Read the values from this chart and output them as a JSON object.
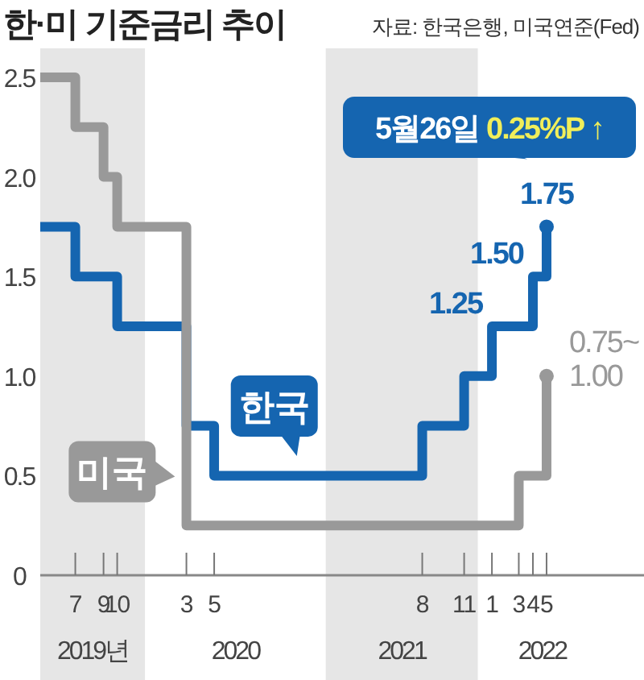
{
  "chart_data": {
    "type": "step",
    "title": "한·미 기준금리 추이",
    "annotations": [
      "자료: 한국은행, 미국연준(Fed)",
      {
        "text": "5월26일 0.25%P ↑",
        "x": "2022-05",
        "y": 1.75
      },
      "2020",
      "2022"
    ],
    "series": [
      {
        "name": "한국",
        "color": "#1565b0",
        "x": [
          "2019-04-15",
          "2019-07",
          "2019-10",
          "2020-03",
          "2020-05",
          "2021-08",
          "2021-11",
          "2022-01",
          "2022-04",
          "2022-05"
        ],
        "values": [
          1.75,
          1.5,
          1.25,
          0.75,
          0.5,
          0.75,
          1.0,
          1.25,
          1.5,
          1.75
        ],
        "value_labels": [
          null,
          null,
          null,
          null,
          null,
          null,
          null,
          "1.25",
          "1.50",
          "1.75"
        ]
      },
      {
        "name": "미국",
        "color": "#999999",
        "x": [
          "2019-04-15",
          "2019-07",
          "2019-09",
          "2019-10",
          "2020-03",
          "2022-03",
          "2022-05"
        ],
        "values": [
          2.5,
          2.25,
          2.0,
          1.75,
          0.25,
          0.5,
          1.0
        ],
        "value_labels": [
          null,
          null,
          null,
          null,
          null,
          null,
          "0.75~\n1.00"
        ]
      }
    ],
    "xlim": [
      "2019-04-15",
      "2022-12"
    ],
    "xticks": [
      {
        "value": "2019-07",
        "label": "7"
      },
      {
        "value": "2019-09",
        "label": "9"
      },
      {
        "value": "2019-10",
        "label": "10"
      },
      {
        "value": "2020-03",
        "label": "3"
      },
      {
        "value": "2020-05",
        "label": "5"
      },
      {
        "value": "2021-08",
        "label": "8"
      },
      {
        "value": "2021-11",
        "label": "11"
      },
      {
        "value": "2022-01",
        "label": "1"
      },
      {
        "value": "2022-03",
        "label": "3"
      },
      {
        "value": "2022-04",
        "label": "4"
      },
      {
        "value": "2022-05",
        "label": "5"
      }
    ],
    "ylim": [
      0,
      2.5
    ],
    "yticks": [
      0,
      {
        "value": 0.5,
        "label": "0.5"
      },
      {
        "value": 1,
        "label": "1.0"
      },
      {
        "value": 1.5,
        "label": "1.5"
      },
      {
        "value": 2,
        "label": "2.0"
      },
      {
        "value": 2.5,
        "label": "2.5"
      }
    ],
    "bands": [
      {
        "axis": "x",
        "from": "2019-04-15",
        "to": "2019-12",
        "label": "2019년",
        "color": "#e6e6e6"
      },
      {
        "axis": "x",
        "from": "2021-01",
        "to": "2021-12",
        "label": "2021",
        "color": "#e6e6e6"
      }
    ],
    "grid": false,
    "legend": "left"
  }
}
